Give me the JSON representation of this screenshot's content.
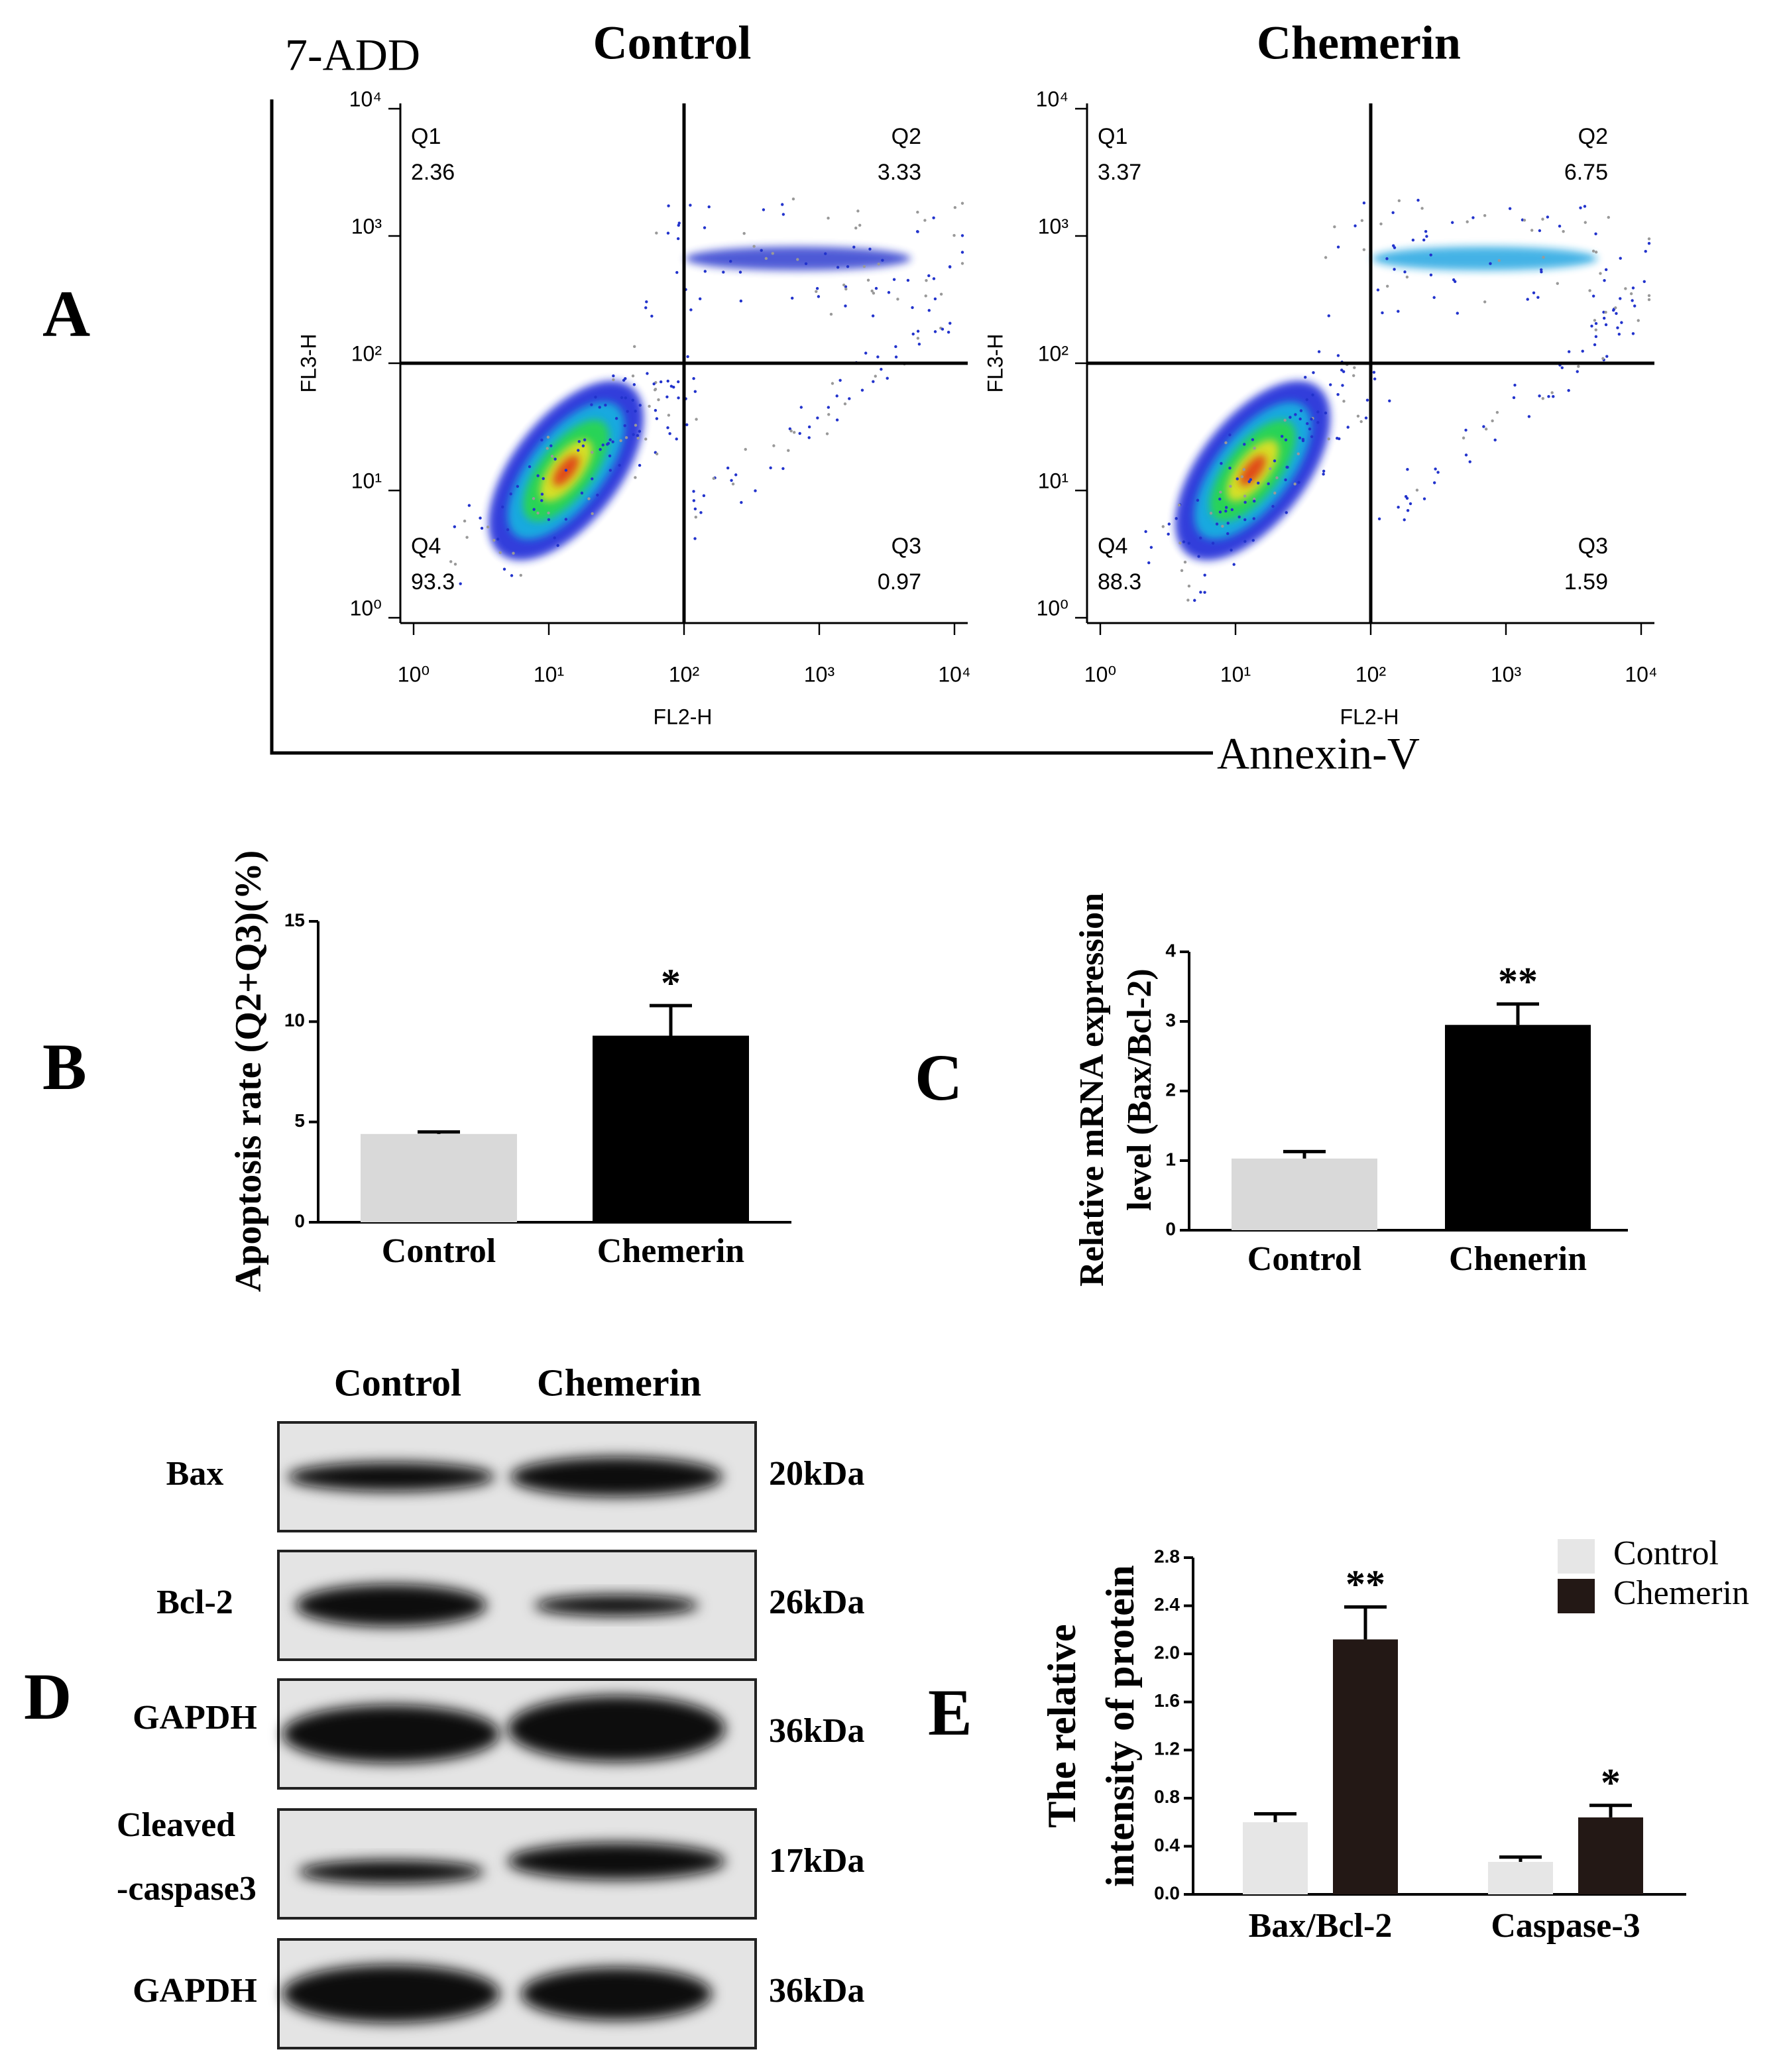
{
  "panel_labels": [
    "A",
    "B",
    "C",
    "D",
    "E"
  ],
  "panel_a": {
    "y_label": "7-ADD",
    "x_label": "Annexin-V"
  },
  "chart_data": [
    {
      "type": "flow",
      "title": "Control",
      "x_label": "FL2-H",
      "y_label": "FL3-H",
      "log_scale": true,
      "xlim": [
        1,
        10000
      ],
      "ylim": [
        1,
        10000
      ],
      "xticks": [
        {
          "value": 1,
          "label": "10⁰"
        },
        {
          "value": 10,
          "label": "10¹"
        },
        {
          "value": 100,
          "label": "10²"
        },
        {
          "value": 1000,
          "label": "10³"
        },
        {
          "value": 10000,
          "label": "10⁴"
        }
      ],
      "yticks": [
        {
          "value": 1,
          "label": "10⁰"
        },
        {
          "value": 10,
          "label": "10¹"
        },
        {
          "value": 100,
          "label": "10²"
        },
        {
          "value": 1000,
          "label": "10³"
        },
        {
          "value": 10000,
          "label": "10⁴"
        }
      ],
      "gate": [
        100,
        100
      ],
      "quadrants": [
        {
          "name": "Q1",
          "value": 2.36
        },
        {
          "name": "Q2",
          "value": 3.33
        },
        {
          "name": "Q3",
          "value": 0.97
        },
        {
          "name": "Q4",
          "value": 93.3
        }
      ]
    },
    {
      "type": "flow",
      "title": "Chemerin",
      "x_label": "FL2-H",
      "y_label": "FL3-H",
      "log_scale": true,
      "xlim": [
        1,
        10000
      ],
      "ylim": [
        1,
        10000
      ],
      "xticks": [
        {
          "value": 1,
          "label": "10⁰"
        },
        {
          "value": 10,
          "label": "10¹"
        },
        {
          "value": 100,
          "label": "10²"
        },
        {
          "value": 1000,
          "label": "10³"
        },
        {
          "value": 10000,
          "label": "10⁴"
        }
      ],
      "yticks": [
        {
          "value": 1,
          "label": "10⁰"
        },
        {
          "value": 10,
          "label": "10¹"
        },
        {
          "value": 100,
          "label": "10²"
        },
        {
          "value": 1000,
          "label": "10³"
        },
        {
          "value": 10000,
          "label": "10⁴"
        }
      ],
      "gate": [
        100,
        100
      ],
      "quadrants": [
        {
          "name": "Q1",
          "value": 3.37
        },
        {
          "name": "Q2",
          "value": 6.75
        },
        {
          "name": "Q3",
          "value": 1.59
        },
        {
          "name": "Q4",
          "value": 88.3
        }
      ]
    },
    {
      "type": "bar",
      "y_label": [
        "Apoptosis rate (Q2+Q3)(%)"
      ],
      "categories": [
        "Control",
        "Chemerin"
      ],
      "values": [
        4.4,
        9.3
      ],
      "errors": [
        0.1,
        1.5
      ],
      "colors": [
        "#d9d9d9",
        "#000000"
      ],
      "annotations": [
        null,
        "*"
      ],
      "ylim": [
        0,
        15
      ],
      "yticks": [
        0,
        5,
        10,
        15
      ]
    },
    {
      "type": "bar",
      "y_label": [
        "Relative mRNA expression",
        "level (Bax/Bcl-2)"
      ],
      "categories": [
        "Control",
        "Chenerin"
      ],
      "values": [
        1.03,
        2.95
      ],
      "errors": [
        0.1,
        0.3
      ],
      "colors": [
        "#d9d9d9",
        "#000000"
      ],
      "annotations": [
        null,
        "**"
      ],
      "ylim": [
        0,
        4
      ],
      "yticks": [
        0,
        1,
        2,
        3,
        4
      ]
    },
    {
      "type": "grouped_bar",
      "y_label": [
        "The relative",
        "intensity of protein"
      ],
      "categories": [
        "Bax/Bcl-2",
        "Caspase-3"
      ],
      "series": [
        {
          "name": "Control",
          "color": "#e6e6e6",
          "values": [
            0.6,
            0.27
          ],
          "errors": [
            0.07,
            0.04
          ]
        },
        {
          "name": "Chemerin",
          "color": "#231815",
          "values": [
            2.12,
            0.64
          ],
          "errors": [
            0.27,
            0.1
          ],
          "annotations": [
            "**",
            "*"
          ]
        }
      ],
      "legend": "upper right",
      "ylim": [
        0,
        2.8
      ],
      "yticks": [
        {
          "value": 0,
          "label": "0.0"
        },
        0.4,
        0.8,
        1.2,
        1.6,
        {
          "value": 2,
          "label": "2.0"
        },
        2.4,
        2.8
      ]
    }
  ],
  "western_blot": {
    "columns": [
      "Control",
      "Chemerin"
    ],
    "rows": [
      {
        "label": [
          "Bax"
        ],
        "size": "20kDa"
      },
      {
        "label": [
          "Bcl-2"
        ],
        "size": "26kDa"
      },
      {
        "label": [
          "GAPDH"
        ],
        "size": "36kDa"
      },
      {
        "label": [
          "Cleaved",
          "-caspase3"
        ],
        "size": "17kDa"
      },
      {
        "label": [
          "GAPDH"
        ],
        "size": "36kDa"
      }
    ]
  }
}
